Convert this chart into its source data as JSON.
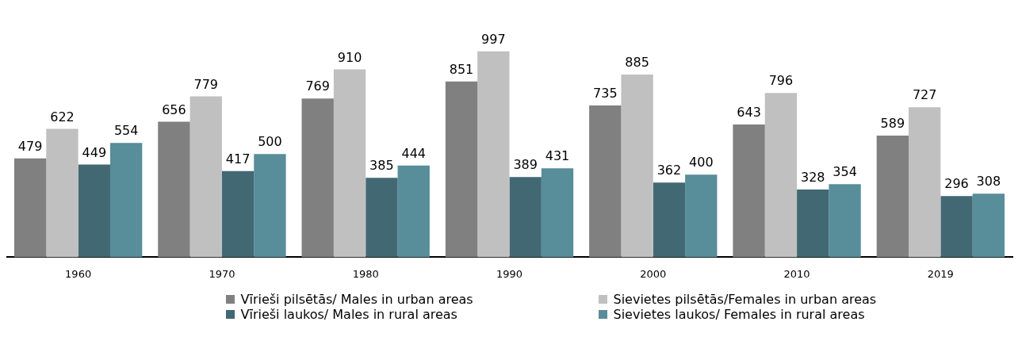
{
  "chart_data": {
    "type": "bar",
    "categories": [
      "1960",
      "1970",
      "1980",
      "1990",
      "2000",
      "2010",
      "2019"
    ],
    "series": [
      {
        "name": "Vīrieši pilsētās/ Males in urban areas",
        "color": "#808080",
        "values": [
          479,
          656,
          769,
          851,
          735,
          643,
          589
        ]
      },
      {
        "name": "Sievietes pilsētās/Females in urban areas",
        "color": "#c0c0c0",
        "values": [
          622,
          779,
          910,
          997,
          885,
          796,
          727
        ]
      },
      {
        "name": "Vīrieši laukos/ Males in rural areas",
        "color": "#426873",
        "values": [
          449,
          417,
          385,
          389,
          362,
          328,
          296
        ]
      },
      {
        "name": "Sievietes laukos/ Females in rural areas",
        "color": "#588d9a",
        "values": [
          554,
          500,
          444,
          431,
          400,
          354,
          308
        ]
      }
    ],
    "tick_labels": "x",
    "data_labels": true,
    "grid": false,
    "legend": "bottom"
  }
}
